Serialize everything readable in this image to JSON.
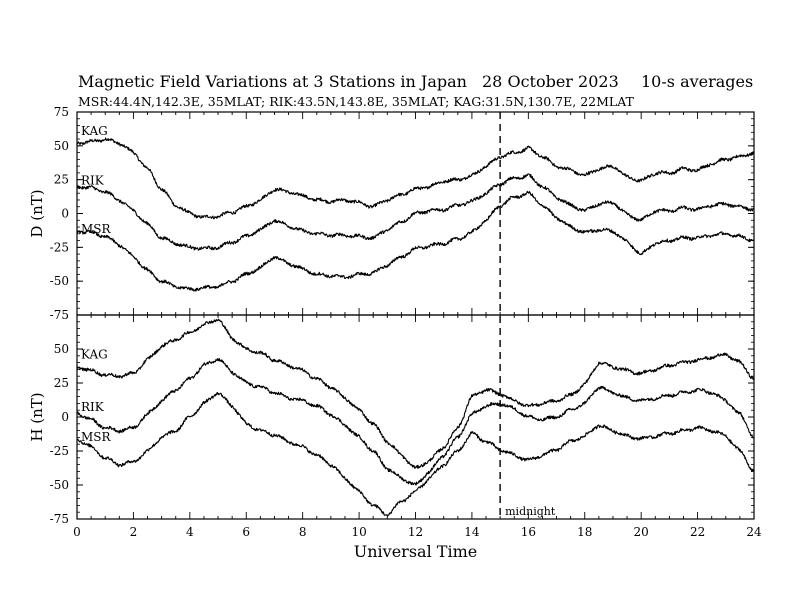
{
  "header": {
    "title": "Magnetic Field Variations at 3 Stations in Japan",
    "date": "28 October 2023",
    "averaging": "10-s averages",
    "stations": "MSR:44.4N,142.3E, 35MLAT;  RIK:43.5N,143.8E, 35MLAT;  KAG:31.5N,130.7E, 22MLAT"
  },
  "chart_data": [
    {
      "type": "line",
      "panel": "top",
      "ylabel": "D (nT)",
      "ylim": [
        -75,
        75
      ],
      "yticks": [
        -75,
        -50,
        -25,
        0,
        25,
        50,
        75
      ],
      "xlim": [
        0,
        24
      ],
      "grid": false,
      "series": [
        {
          "name": "KAG",
          "x": [
            0,
            0.5,
            1,
            1.5,
            2,
            2.5,
            3,
            3.5,
            4,
            4.5,
            5,
            5.5,
            6,
            6.5,
            7,
            7.5,
            8,
            8.5,
            9,
            9.5,
            10,
            10.5,
            11,
            11.5,
            12,
            12.5,
            13,
            13.5,
            14,
            14.5,
            15,
            15.5,
            16,
            16.5,
            17,
            17.5,
            18,
            18.5,
            19,
            19.5,
            20,
            20.5,
            21,
            21.5,
            22,
            22.5,
            23,
            23.5,
            24
          ],
          "values": [
            52,
            53,
            55,
            52,
            45,
            33,
            18,
            6,
            0,
            -3,
            -2,
            1,
            5,
            10,
            18,
            16,
            13,
            10,
            9,
            10,
            8,
            5,
            10,
            14,
            18,
            20,
            24,
            25,
            28,
            35,
            42,
            45,
            48,
            42,
            35,
            32,
            28,
            33,
            35,
            27,
            24,
            30,
            30,
            33,
            32,
            37,
            40,
            42,
            45
          ]
        },
        {
          "name": "RIK",
          "x": [
            0,
            0.5,
            1,
            1.5,
            2,
            2.5,
            3,
            3.5,
            4,
            4.5,
            5,
            5.5,
            6,
            6.5,
            7,
            7.5,
            8,
            8.5,
            9,
            9.5,
            10,
            10.5,
            11,
            11.5,
            12,
            12.5,
            13,
            13.5,
            14,
            14.5,
            15,
            15.5,
            16,
            16.5,
            17,
            17.5,
            18,
            18.5,
            19,
            19.5,
            20,
            20.5,
            21,
            21.5,
            22,
            22.5,
            23,
            23.5,
            24
          ],
          "values": [
            20,
            19,
            16,
            10,
            2,
            -8,
            -18,
            -22,
            -25,
            -26,
            -25,
            -21,
            -17,
            -12,
            -5,
            -9,
            -13,
            -15,
            -16,
            -16,
            -17,
            -18,
            -12,
            -6,
            0,
            2,
            3,
            6,
            9,
            15,
            22,
            26,
            28,
            20,
            12,
            6,
            2,
            7,
            8,
            -1,
            -5,
            2,
            2,
            4,
            3,
            6,
            7,
            5,
            3
          ]
        },
        {
          "name": "MSR",
          "x": [
            0,
            0.5,
            1,
            1.5,
            2,
            2.5,
            3,
            3.5,
            4,
            4.5,
            5,
            5.5,
            6,
            6.5,
            7,
            7.5,
            8,
            8.5,
            9,
            9.5,
            10,
            10.5,
            11,
            11.5,
            12,
            12.5,
            13,
            13.5,
            14,
            14.5,
            15,
            15.5,
            16,
            16.5,
            17,
            17.5,
            18,
            18.5,
            19,
            19.5,
            20,
            20.5,
            21,
            21.5,
            22,
            22.5,
            23,
            23.5,
            24
          ],
          "values": [
            -13,
            -14,
            -17,
            -23,
            -32,
            -42,
            -50,
            -54,
            -56,
            -55,
            -54,
            -50,
            -45,
            -40,
            -32,
            -37,
            -41,
            -45,
            -46,
            -47,
            -45,
            -44,
            -38,
            -32,
            -26,
            -24,
            -22,
            -19,
            -14,
            -5,
            6,
            12,
            15,
            6,
            -3,
            -10,
            -14,
            -12,
            -13,
            -21,
            -30,
            -22,
            -20,
            -18,
            -18,
            -16,
            -15,
            -17,
            -20
          ]
        }
      ]
    },
    {
      "type": "line",
      "panel": "bottom",
      "ylabel": "H (nT)",
      "xlabel": "Universal Time",
      "ylim": [
        -75,
        75
      ],
      "yticks": [
        -75,
        -50,
        -25,
        0,
        25,
        50
      ],
      "xlim": [
        0,
        24
      ],
      "xticks": [
        0,
        2,
        4,
        6,
        8,
        10,
        12,
        14,
        16,
        18,
        20,
        22,
        24
      ],
      "grid": false,
      "annotations": [
        {
          "x": 15,
          "text": "midnight",
          "style": "dashed-vertical-line"
        }
      ],
      "series": [
        {
          "name": "KAG",
          "x": [
            0,
            0.5,
            1,
            1.5,
            2,
            2.5,
            3,
            3.5,
            4,
            4.5,
            5,
            5.5,
            6,
            6.5,
            7,
            7.5,
            8,
            8.5,
            9,
            9.5,
            10,
            10.5,
            11,
            11.5,
            12,
            12.5,
            13,
            13.5,
            14,
            14.5,
            15,
            15.5,
            16,
            16.5,
            17,
            17.5,
            18,
            18.5,
            19,
            19.5,
            20,
            20.5,
            21,
            21.5,
            22,
            22.5,
            23,
            23.5,
            24
          ],
          "values": [
            37,
            34,
            31,
            30,
            32,
            42,
            52,
            57,
            62,
            68,
            72,
            58,
            50,
            47,
            42,
            38,
            34,
            28,
            22,
            14,
            5,
            -5,
            -18,
            -28,
            -38,
            -32,
            -22,
            -8,
            15,
            20,
            17,
            12,
            8,
            10,
            12,
            16,
            24,
            40,
            37,
            34,
            32,
            35,
            38,
            40,
            42,
            44,
            46,
            40,
            28
          ]
        },
        {
          "name": "RIK",
          "x": [
            0,
            0.5,
            1,
            1.5,
            2,
            2.5,
            3,
            3.5,
            4,
            4.5,
            5,
            5.5,
            6,
            6.5,
            7,
            7.5,
            8,
            8.5,
            9,
            9.5,
            10,
            10.5,
            11,
            11.5,
            12,
            12.5,
            13,
            13.5,
            14,
            14.5,
            15,
            15.5,
            16,
            16.5,
            17,
            17.5,
            18,
            18.5,
            19,
            19.5,
            20,
            20.5,
            21,
            21.5,
            22,
            22.5,
            23,
            23.5,
            24
          ],
          "values": [
            3,
            -2,
            -8,
            -10,
            -8,
            2,
            12,
            20,
            28,
            38,
            43,
            33,
            25,
            22,
            18,
            14,
            12,
            8,
            2,
            -6,
            -15,
            -25,
            -38,
            -45,
            -50,
            -40,
            -28,
            -15,
            2,
            8,
            10,
            6,
            0,
            -2,
            0,
            5,
            10,
            22,
            18,
            14,
            12,
            14,
            16,
            18,
            20,
            18,
            12,
            2,
            -15
          ]
        },
        {
          "name": "MSR",
          "x": [
            0,
            0.5,
            1,
            1.5,
            2,
            2.5,
            3,
            3.5,
            4,
            4.5,
            5,
            5.5,
            6,
            6.5,
            7,
            7.5,
            8,
            8.5,
            9,
            9.5,
            10,
            10.5,
            11,
            11.5,
            12,
            12.5,
            13,
            13.5,
            14,
            14.5,
            15,
            15.5,
            16,
            16.5,
            17,
            17.5,
            18,
            18.5,
            19,
            19.5,
            20,
            20.5,
            21,
            21.5,
            22,
            22.5,
            23,
            23.5,
            24
          ],
          "values": [
            -16,
            -22,
            -30,
            -35,
            -33,
            -25,
            -15,
            -10,
            0,
            10,
            18,
            8,
            -5,
            -10,
            -13,
            -18,
            -22,
            -28,
            -35,
            -45,
            -55,
            -65,
            -72,
            -62,
            -55,
            -45,
            -35,
            -25,
            -12,
            -18,
            -24,
            -28,
            -32,
            -28,
            -24,
            -18,
            -14,
            -6,
            -10,
            -14,
            -16,
            -14,
            -12,
            -10,
            -8,
            -10,
            -14,
            -25,
            -40
          ]
        }
      ]
    }
  ]
}
